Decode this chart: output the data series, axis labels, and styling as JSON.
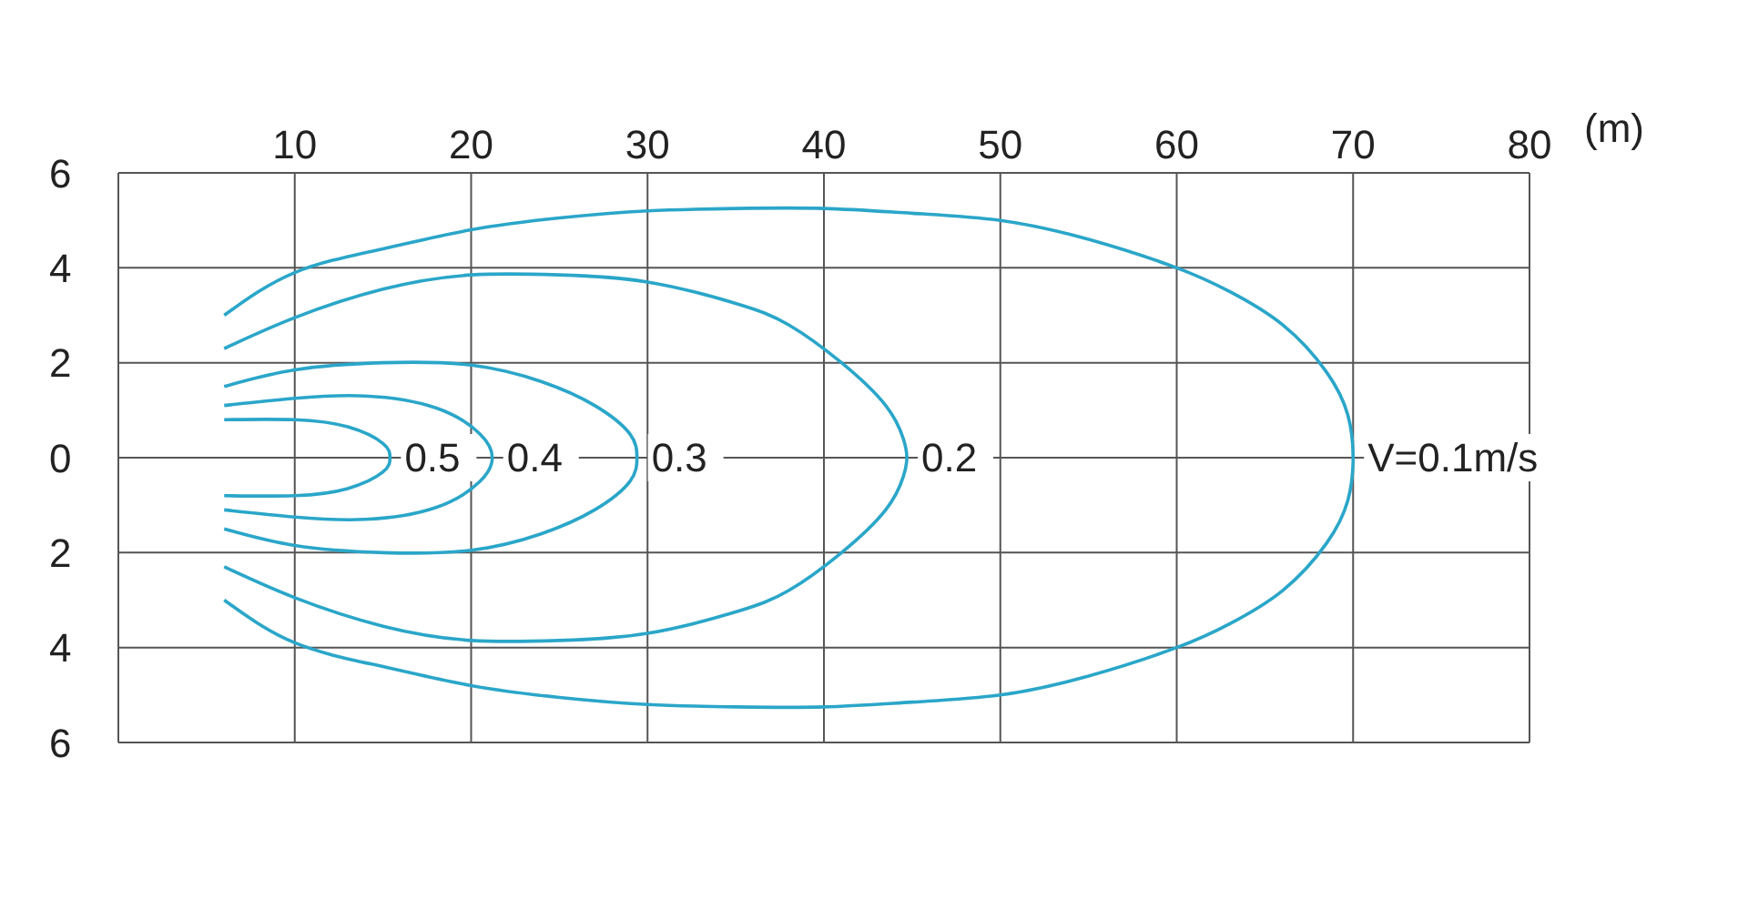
{
  "chart_data": {
    "type": "line",
    "xlabel": "(m)",
    "xlim": [
      0,
      80
    ],
    "xticks": [
      10,
      20,
      30,
      40,
      50,
      60,
      70,
      80
    ],
    "ylim": [
      -6,
      6
    ],
    "yticks": [
      {
        "value": -6,
        "label": "6"
      },
      {
        "value": -4,
        "label": "4"
      },
      {
        "value": -2,
        "label": "2"
      },
      0,
      2,
      4,
      6
    ],
    "grid": true,
    "marker": "none",
    "line_style": "solid",
    "series": [
      {
        "name": "V=0.1m/s",
        "color": "#2aa6c9",
        "x": [
          6,
          10,
          15,
          20,
          25,
          30,
          35,
          40,
          45,
          50,
          55,
          60,
          63,
          66,
          68.5,
          69.7,
          70,
          69.7,
          68.5,
          66,
          63,
          60,
          55,
          50,
          45,
          40,
          35,
          30,
          25,
          20,
          15,
          10,
          6
        ],
        "values": [
          3.0,
          3.9,
          4.4,
          4.8,
          5.05,
          5.2,
          5.25,
          5.25,
          5.15,
          5.0,
          4.6,
          4.0,
          3.5,
          2.8,
          1.8,
          0.9,
          0,
          -0.9,
          -1.8,
          -2.8,
          -3.5,
          -4.0,
          -4.6,
          -5.0,
          -5.15,
          -5.25,
          -5.25,
          -5.2,
          -5.05,
          -4.8,
          -4.4,
          -3.9,
          -3.0
        ]
      },
      {
        "name": "0.2",
        "color": "#2aa6c9",
        "x": [
          6,
          10,
          15,
          20,
          25,
          30,
          35,
          38,
          41,
          43.5,
          44.5,
          44.7,
          44.5,
          43.5,
          41,
          38,
          35,
          30,
          25,
          20,
          15,
          10,
          6
        ],
        "values": [
          2.3,
          2.95,
          3.55,
          3.85,
          3.85,
          3.7,
          3.25,
          2.8,
          2.0,
          1.1,
          0.4,
          0,
          -0.4,
          -1.1,
          -2.0,
          -2.8,
          -3.25,
          -3.7,
          -3.85,
          -3.85,
          -3.55,
          -2.95,
          -2.3
        ]
      },
      {
        "name": "0.3",
        "color": "#2aa6c9",
        "x": [
          6,
          10,
          15,
          20,
          24,
          27,
          29,
          29.4,
          29,
          27,
          24,
          20,
          15,
          10,
          6
        ],
        "values": [
          1.5,
          1.85,
          2.0,
          1.95,
          1.6,
          1.1,
          0.5,
          0,
          -0.5,
          -1.1,
          -1.6,
          -1.95,
          -2.0,
          -1.85,
          -1.5
        ]
      },
      {
        "name": "0.4",
        "color": "#2aa6c9",
        "x": [
          6,
          10,
          14,
          18,
          20.5,
          21.2,
          20.5,
          18,
          14,
          10,
          6
        ],
        "values": [
          1.1,
          1.25,
          1.3,
          1.05,
          0.5,
          0,
          -0.5,
          -1.05,
          -1.3,
          -1.25,
          -1.1
        ]
      },
      {
        "name": "0.5",
        "color": "#2aa6c9",
        "x": [
          6,
          10,
          13,
          15,
          15.4,
          15,
          13,
          10,
          6
        ],
        "values": [
          0.8,
          0.8,
          0.65,
          0.3,
          0,
          -0.3,
          -0.65,
          -0.8,
          -0.8
        ]
      }
    ]
  }
}
